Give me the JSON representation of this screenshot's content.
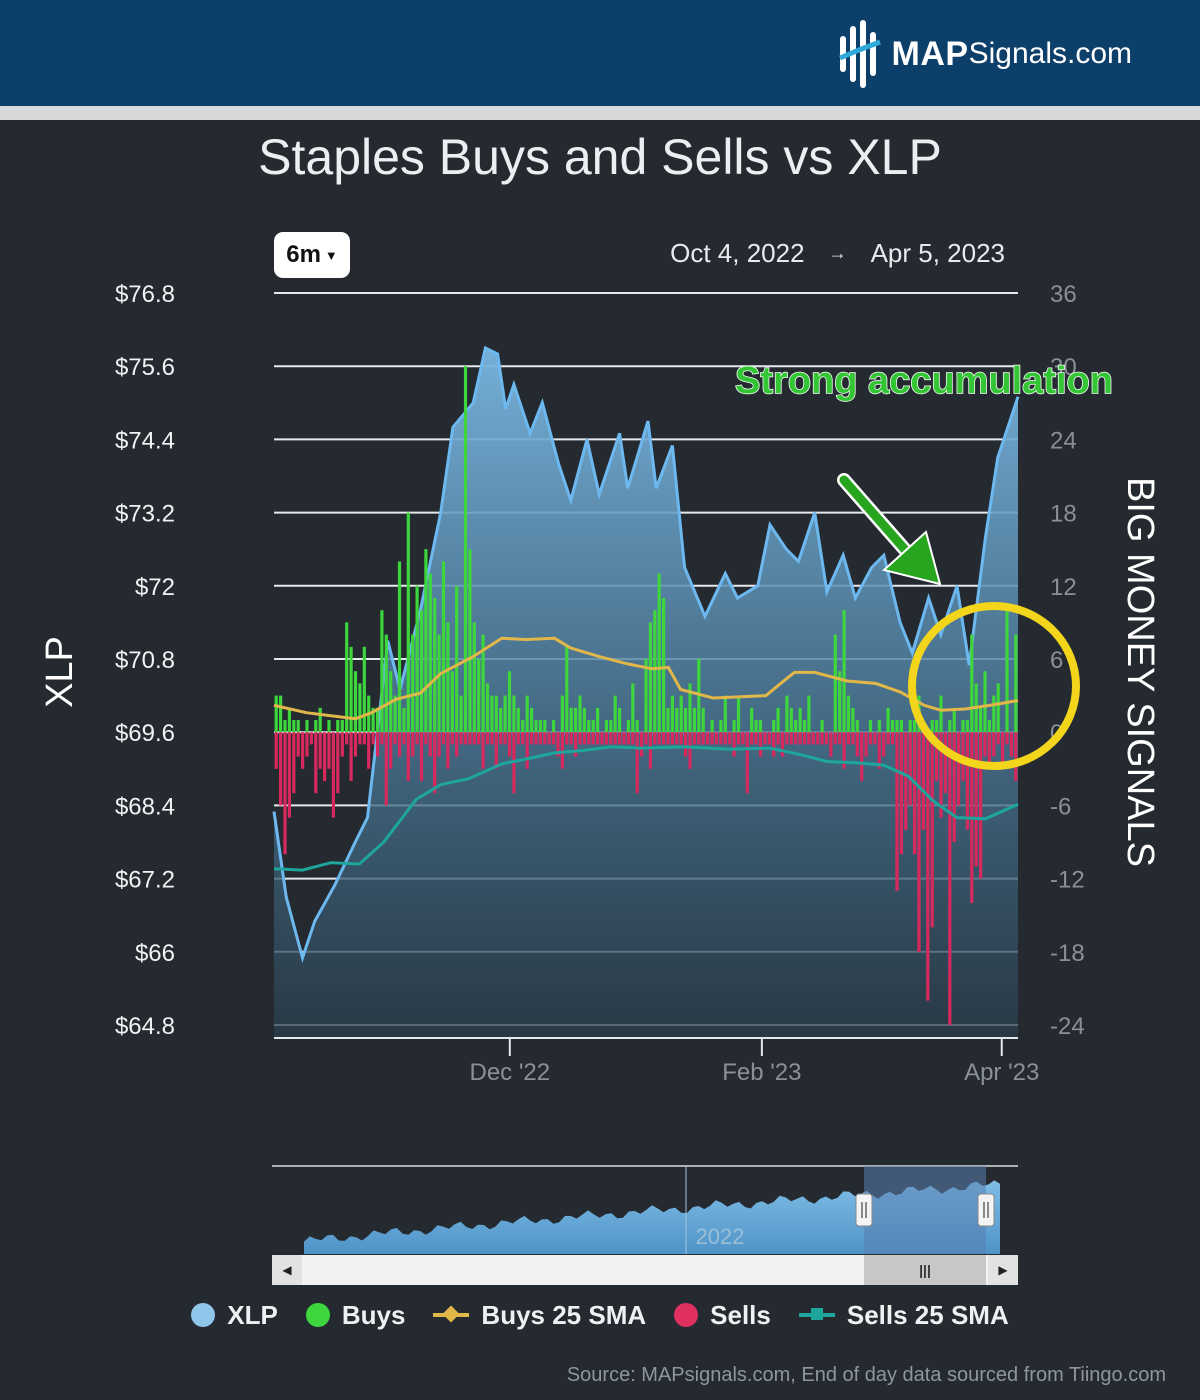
{
  "header": {
    "logo_bold": "MAP",
    "logo_rest": "Signals.com"
  },
  "chart_data": {
    "type": "bar",
    "title": "Staples Buys and Sells vs XLP",
    "range_selector": "6m",
    "date_from": "Oct 4, 2022",
    "date_arrow": "→",
    "date_to": "Apr 5, 2023",
    "ylabel_left": "XLP",
    "ylabel_right": "BIG MONEY SIGNALS",
    "y_left_range": [
      64.8,
      76.8
    ],
    "y_right_range": [
      -24,
      36
    ],
    "y_left_ticks": [
      "$76.8",
      "$75.6",
      "$74.4",
      "$73.2",
      "$72",
      "$70.8",
      "$69.6",
      "$68.4",
      "$67.2",
      "$66",
      "$64.8"
    ],
    "y_right_ticks": [
      "36",
      "30",
      "24",
      "18",
      "12",
      "6",
      "0",
      "-6",
      "-12",
      "-18",
      "-24"
    ],
    "x_ticks": [
      "Dec '22",
      "Feb '23",
      "Apr '23"
    ],
    "x_tick_dates": [
      "2022-12-01",
      "2023-02-01",
      "2023-04-01"
    ],
    "x_start": "2022-10-04",
    "x_end": "2023-04-05",
    "grid": "horizontal",
    "annotation": "Strong accumulation",
    "navigator_label": "2022",
    "xlp_price": [
      [
        "2022-10-04",
        68.3
      ],
      [
        "2022-10-07",
        66.9
      ],
      [
        "2022-10-11",
        65.9
      ],
      [
        "2022-10-14",
        66.5
      ],
      [
        "2022-10-19",
        67.1
      ],
      [
        "2022-10-24",
        67.8
      ],
      [
        "2022-10-27",
        68.2
      ],
      [
        "2022-11-01",
        71.1
      ],
      [
        "2022-11-04",
        70.3
      ],
      [
        "2022-11-09",
        71.6
      ],
      [
        "2022-11-14",
        73.2
      ],
      [
        "2022-11-17",
        74.6
      ],
      [
        "2022-11-22",
        75.0
      ],
      [
        "2022-11-25",
        75.9
      ],
      [
        "2022-11-28",
        75.8
      ],
      [
        "2022-11-30",
        74.9
      ],
      [
        "2022-12-02",
        75.3
      ],
      [
        "2022-12-06",
        74.5
      ],
      [
        "2022-12-09",
        75.0
      ],
      [
        "2022-12-13",
        74.0
      ],
      [
        "2022-12-16",
        73.4
      ],
      [
        "2022-12-20",
        74.4
      ],
      [
        "2022-12-23",
        73.5
      ],
      [
        "2022-12-28",
        74.5
      ],
      [
        "2022-12-30",
        73.6
      ],
      [
        "2023-01-04",
        74.7
      ],
      [
        "2023-01-06",
        73.6
      ],
      [
        "2023-01-10",
        74.3
      ],
      [
        "2023-01-13",
        72.3
      ],
      [
        "2023-01-18",
        71.5
      ],
      [
        "2023-01-23",
        72.2
      ],
      [
        "2023-01-26",
        71.8
      ],
      [
        "2023-01-31",
        72.0
      ],
      [
        "2023-02-03",
        73.0
      ],
      [
        "2023-02-07",
        72.6
      ],
      [
        "2023-02-10",
        72.4
      ],
      [
        "2023-02-14",
        73.2
      ],
      [
        "2023-02-17",
        71.9
      ],
      [
        "2023-02-21",
        72.5
      ],
      [
        "2023-02-24",
        71.8
      ],
      [
        "2023-02-28",
        72.3
      ],
      [
        "2023-03-03",
        72.5
      ],
      [
        "2023-03-07",
        71.4
      ],
      [
        "2023-03-10",
        70.9
      ],
      [
        "2023-03-14",
        71.8
      ],
      [
        "2023-03-17",
        71.2
      ],
      [
        "2023-03-21",
        72.0
      ],
      [
        "2023-03-24",
        70.7
      ],
      [
        "2023-03-28",
        72.8
      ],
      [
        "2023-03-31",
        74.1
      ],
      [
        "2023-04-05",
        75.1
      ]
    ],
    "buys": [
      3,
      3,
      1,
      2,
      1,
      1,
      0,
      1,
      0,
      1,
      2,
      0,
      1,
      0,
      1,
      1,
      9,
      7,
      5,
      4,
      7,
      3,
      2,
      2,
      10,
      8,
      5,
      3,
      14,
      2,
      18,
      8,
      12,
      10,
      15,
      13,
      11,
      8,
      14,
      9,
      5,
      12,
      3,
      30,
      15,
      9,
      6,
      8,
      4,
      3,
      3,
      2,
      3,
      5,
      3,
      2,
      1,
      3,
      2,
      1,
      1,
      1,
      0,
      1,
      0,
      3,
      7,
      2,
      2,
      3,
      2,
      1,
      1,
      2,
      0,
      1,
      1,
      3,
      2,
      0,
      1,
      4,
      1,
      0,
      6,
      9,
      10,
      13,
      11,
      2,
      3,
      2,
      3,
      2,
      4,
      2,
      6,
      2,
      0,
      1,
      0,
      1,
      3,
      0,
      1,
      3,
      0,
      0,
      2,
      1,
      1,
      0,
      0,
      1,
      2,
      0,
      3,
      2,
      1,
      2,
      1,
      3,
      0,
      0,
      1,
      0,
      0,
      8,
      5,
      10,
      3,
      2,
      1,
      0,
      0,
      1,
      0,
      1,
      0,
      2,
      1,
      1,
      1,
      0,
      1,
      1,
      3,
      0,
      0,
      1,
      1,
      3,
      0,
      1,
      2,
      0,
      1,
      1,
      8,
      4,
      2,
      5,
      1,
      3,
      4,
      0,
      10,
      0,
      8
    ],
    "sells": [
      -3,
      -6,
      -10,
      -7,
      -5,
      -2,
      -3,
      -2,
      -1,
      -5,
      -3,
      -4,
      -3,
      -7,
      -5,
      -2,
      -1,
      -4,
      -2,
      -1,
      -1,
      -3,
      -1,
      -2,
      -1,
      -6,
      -3,
      -1,
      -2,
      -1,
      -4,
      -2,
      -1,
      -4,
      -1,
      -2,
      -5,
      -2,
      -1,
      -3,
      -1,
      -2,
      -1,
      -1,
      -1,
      -1,
      -1,
      -3,
      -1,
      -1,
      -3,
      -1,
      -1,
      -2,
      -5,
      -1,
      -1,
      -3,
      -1,
      -1,
      -1,
      -1,
      -1,
      -1,
      -2,
      -3,
      -1,
      -1,
      -2,
      -1,
      -1,
      -1,
      -1,
      -1,
      -1,
      -1,
      -1,
      -1,
      -1,
      -1,
      -1,
      -1,
      -5,
      -2,
      -1,
      -3,
      -1,
      -1,
      -1,
      -1,
      -1,
      -1,
      -1,
      -2,
      -3,
      -1,
      -1,
      -1,
      -1,
      -1,
      -1,
      -1,
      -1,
      -1,
      -2,
      -1,
      -1,
      -5,
      -1,
      -1,
      -2,
      -1,
      -1,
      -2,
      -1,
      -2,
      -1,
      -1,
      -1,
      -1,
      -1,
      -1,
      -1,
      -1,
      -1,
      -1,
      -2,
      -1,
      -1,
      -3,
      -1,
      -1,
      -2,
      -4,
      -2,
      -1,
      -1,
      -3,
      -2,
      -1,
      -1,
      -13,
      -10,
      -8,
      -6,
      -10,
      -18,
      -8,
      -22,
      -16,
      -4,
      -7,
      -5,
      -24,
      -9,
      -6,
      -4,
      -8,
      -14,
      -11,
      -12,
      -2,
      -3,
      -2,
      -1,
      -3,
      -1,
      -2,
      -4
    ],
    "buys_sma": [
      [
        "2022-10-04",
        2.2
      ],
      [
        "2022-10-12",
        1.6
      ],
      [
        "2022-10-24",
        1.1
      ],
      [
        "2022-10-28",
        1.6
      ],
      [
        "2022-11-03",
        2.7
      ],
      [
        "2022-11-09",
        3.2
      ],
      [
        "2022-11-14",
        4.8
      ],
      [
        "2022-11-22",
        6.2
      ],
      [
        "2022-11-29",
        7.7
      ],
      [
        "2022-12-05",
        7.6
      ],
      [
        "2022-12-12",
        7.7
      ],
      [
        "2022-12-16",
        6.9
      ],
      [
        "2022-12-23",
        6.2
      ],
      [
        "2022-12-30",
        5.6
      ],
      [
        "2023-01-05",
        5.2
      ],
      [
        "2023-01-09",
        5.3
      ],
      [
        "2023-01-12",
        3.5
      ],
      [
        "2023-01-20",
        2.8
      ],
      [
        "2023-01-27",
        2.9
      ],
      [
        "2023-02-02",
        3.0
      ],
      [
        "2023-02-06",
        4.1
      ],
      [
        "2023-02-09",
        4.9
      ],
      [
        "2023-02-14",
        4.9
      ],
      [
        "2023-02-22",
        4.2
      ],
      [
        "2023-03-01",
        4.0
      ],
      [
        "2023-03-07",
        3.3
      ],
      [
        "2023-03-13",
        2.2
      ],
      [
        "2023-03-17",
        1.8
      ],
      [
        "2023-03-23",
        1.9
      ],
      [
        "2023-03-29",
        2.2
      ],
      [
        "2023-04-05",
        2.6
      ]
    ],
    "sells_sma": [
      [
        "2022-10-04",
        -11.2
      ],
      [
        "2022-10-11",
        -11.3
      ],
      [
        "2022-10-18",
        -10.7
      ],
      [
        "2022-10-25",
        -10.8
      ],
      [
        "2022-10-31",
        -9.0
      ],
      [
        "2022-11-08",
        -5.5
      ],
      [
        "2022-11-14",
        -4.3
      ],
      [
        "2022-11-21",
        -3.8
      ],
      [
        "2022-11-29",
        -2.6
      ],
      [
        "2022-12-05",
        -2.2
      ],
      [
        "2022-12-12",
        -1.7
      ],
      [
        "2022-12-19",
        -1.5
      ],
      [
        "2022-12-26",
        -1.2
      ],
      [
        "2023-01-02",
        -1.3
      ],
      [
        "2023-01-13",
        -1.2
      ],
      [
        "2023-01-24",
        -1.4
      ],
      [
        "2023-02-03",
        -1.3
      ],
      [
        "2023-02-10",
        -1.8
      ],
      [
        "2023-02-17",
        -2.4
      ],
      [
        "2023-02-24",
        -2.5
      ],
      [
        "2023-03-03",
        -2.7
      ],
      [
        "2023-03-09",
        -3.6
      ],
      [
        "2023-03-15",
        -5.6
      ],
      [
        "2023-03-21",
        -7.0
      ],
      [
        "2023-03-28",
        -7.1
      ],
      [
        "2023-04-05",
        -5.9
      ]
    ],
    "legend": [
      {
        "label": "XLP",
        "color": "#8fc6ea",
        "marker": "dot"
      },
      {
        "label": "Buys",
        "color": "#3dd63d",
        "marker": "dot"
      },
      {
        "label": "Buys 25 SMA",
        "color": "#e2b74a",
        "marker": "line-diamond"
      },
      {
        "label": "Sells",
        "color": "#e0305f",
        "marker": "dot"
      },
      {
        "label": "Sells 25 SMA",
        "color": "#1ea59c",
        "marker": "line-square"
      }
    ],
    "colors": {
      "area": "#6fa9d3",
      "price_line": "#6db8ef",
      "buys": "#3dd63d",
      "sells": "#d8295f",
      "buys_sma": "#e2b74a",
      "sells_sma": "#1ea59c",
      "circle": "#f3d51c",
      "arrow": "#27a51e"
    }
  },
  "footer": {
    "source": "Source: MAPsignals.com, End of day data sourced from Tiingo.com"
  }
}
